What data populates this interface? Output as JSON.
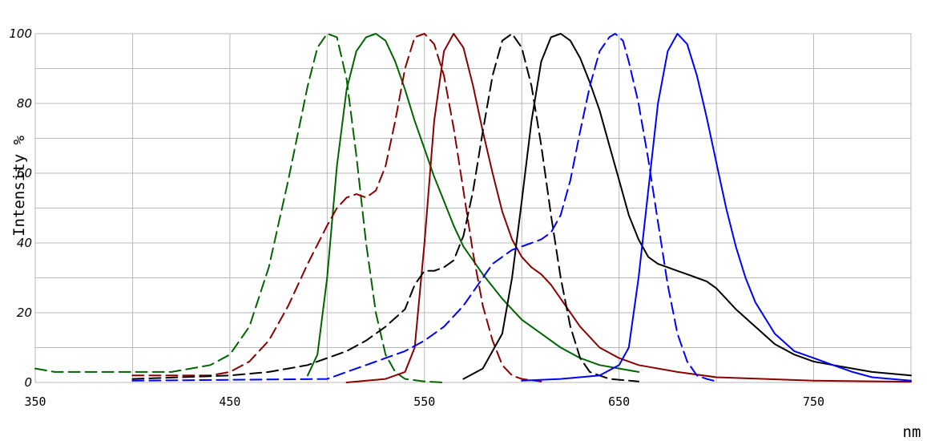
{
  "chart_data": {
    "type": "line",
    "title": "",
    "xlabel": "nm",
    "ylabel": "Intensity %",
    "xlim": [
      350,
      800
    ],
    "ylim": [
      0,
      100
    ],
    "x_ticks": [
      350,
      450,
      550,
      650,
      750
    ],
    "y_ticks": [
      0,
      20,
      40,
      60,
      80,
      100
    ],
    "grid": true,
    "legend": "none",
    "series": [
      {
        "color": "#006400",
        "style": "dashed",
        "points": [
          [
            350,
            4
          ],
          [
            360,
            3
          ],
          [
            380,
            3
          ],
          [
            400,
            3
          ],
          [
            420,
            3
          ],
          [
            440,
            5
          ],
          [
            450,
            8
          ],
          [
            460,
            16
          ],
          [
            470,
            33
          ],
          [
            480,
            58
          ],
          [
            490,
            85
          ],
          [
            495,
            96
          ],
          [
            500,
            100
          ],
          [
            505,
            99
          ],
          [
            510,
            87
          ],
          [
            515,
            65
          ],
          [
            520,
            40
          ],
          [
            525,
            20
          ],
          [
            530,
            8
          ],
          [
            535,
            3
          ],
          [
            540,
            1
          ],
          [
            550,
            0.3
          ],
          [
            560,
            0
          ]
        ]
      },
      {
        "color": "#006400",
        "style": "solid",
        "points": [
          [
            490,
            2
          ],
          [
            495,
            8
          ],
          [
            500,
            30
          ],
          [
            505,
            62
          ],
          [
            510,
            84
          ],
          [
            515,
            95
          ],
          [
            520,
            99
          ],
          [
            525,
            100
          ],
          [
            530,
            98
          ],
          [
            535,
            92
          ],
          [
            540,
            84
          ],
          [
            545,
            75
          ],
          [
            550,
            67
          ],
          [
            555,
            59
          ],
          [
            560,
            52
          ],
          [
            565,
            45
          ],
          [
            570,
            39
          ],
          [
            580,
            31
          ],
          [
            590,
            24
          ],
          [
            600,
            18
          ],
          [
            610,
            14
          ],
          [
            620,
            10
          ],
          [
            630,
            7
          ],
          [
            640,
            5
          ],
          [
            650,
            4
          ],
          [
            660,
            3
          ]
        ]
      },
      {
        "color": "#8b0000",
        "style": "dashed",
        "points": [
          [
            400,
            2
          ],
          [
            440,
            2
          ],
          [
            450,
            3
          ],
          [
            460,
            6
          ],
          [
            470,
            12
          ],
          [
            480,
            22
          ],
          [
            490,
            34
          ],
          [
            500,
            45
          ],
          [
            505,
            50
          ],
          [
            510,
            53
          ],
          [
            515,
            54
          ],
          [
            520,
            53
          ],
          [
            525,
            55
          ],
          [
            530,
            62
          ],
          [
            535,
            75
          ],
          [
            540,
            90
          ],
          [
            545,
            99
          ],
          [
            550,
            100
          ],
          [
            555,
            97
          ],
          [
            560,
            88
          ],
          [
            565,
            73
          ],
          [
            570,
            55
          ],
          [
            575,
            37
          ],
          [
            580,
            22
          ],
          [
            585,
            12
          ],
          [
            590,
            5
          ],
          [
            595,
            2
          ],
          [
            600,
            1
          ],
          [
            610,
            0.3
          ]
        ]
      },
      {
        "color": "#8b0000",
        "style": "solid",
        "points": [
          [
            510,
            0
          ],
          [
            530,
            1
          ],
          [
            540,
            3
          ],
          [
            545,
            10
          ],
          [
            550,
            40
          ],
          [
            555,
            75
          ],
          [
            560,
            95
          ],
          [
            565,
            100
          ],
          [
            570,
            96
          ],
          [
            575,
            85
          ],
          [
            580,
            72
          ],
          [
            585,
            60
          ],
          [
            590,
            49
          ],
          [
            595,
            41
          ],
          [
            600,
            36
          ],
          [
            605,
            33
          ],
          [
            610,
            31
          ],
          [
            615,
            28
          ],
          [
            620,
            24
          ],
          [
            630,
            16
          ],
          [
            640,
            10
          ],
          [
            650,
            7
          ],
          [
            660,
            5
          ],
          [
            680,
            3
          ],
          [
            700,
            1.5
          ],
          [
            750,
            0.5
          ],
          [
            800,
            0.2
          ]
        ]
      },
      {
        "color": "#000000",
        "style": "dashed",
        "points": [
          [
            400,
            1
          ],
          [
            450,
            2
          ],
          [
            470,
            3
          ],
          [
            480,
            4
          ],
          [
            490,
            5
          ],
          [
            500,
            7
          ],
          [
            510,
            9
          ],
          [
            520,
            12
          ],
          [
            530,
            16
          ],
          [
            540,
            21
          ],
          [
            545,
            28
          ],
          [
            550,
            32
          ],
          [
            555,
            32
          ],
          [
            560,
            33
          ],
          [
            565,
            35
          ],
          [
            570,
            42
          ],
          [
            575,
            55
          ],
          [
            580,
            72
          ],
          [
            585,
            88
          ],
          [
            590,
            98
          ],
          [
            595,
            100
          ],
          [
            600,
            96
          ],
          [
            605,
            85
          ],
          [
            610,
            68
          ],
          [
            615,
            48
          ],
          [
            620,
            30
          ],
          [
            625,
            16
          ],
          [
            630,
            7
          ],
          [
            635,
            3
          ],
          [
            645,
            1
          ],
          [
            660,
            0.3
          ]
        ]
      },
      {
        "color": "#000000",
        "style": "solid",
        "points": [
          [
            570,
            1
          ],
          [
            580,
            4
          ],
          [
            590,
            14
          ],
          [
            595,
            30
          ],
          [
            600,
            52
          ],
          [
            605,
            75
          ],
          [
            610,
            92
          ],
          [
            615,
            99
          ],
          [
            620,
            100
          ],
          [
            625,
            98
          ],
          [
            630,
            93
          ],
          [
            635,
            86
          ],
          [
            640,
            78
          ],
          [
            645,
            68
          ],
          [
            650,
            58
          ],
          [
            655,
            48
          ],
          [
            660,
            41
          ],
          [
            665,
            36
          ],
          [
            670,
            34
          ],
          [
            675,
            33
          ],
          [
            680,
            32
          ],
          [
            685,
            31
          ],
          [
            690,
            30
          ],
          [
            695,
            29
          ],
          [
            700,
            27
          ],
          [
            705,
            24
          ],
          [
            710,
            21
          ],
          [
            720,
            16
          ],
          [
            730,
            11
          ],
          [
            740,
            8
          ],
          [
            750,
            6
          ],
          [
            760,
            5
          ],
          [
            770,
            4
          ],
          [
            780,
            3
          ],
          [
            800,
            2
          ]
        ]
      },
      {
        "color": "#0000ff",
        "style": "dashed",
        "points": [
          [
            400,
            0.5
          ],
          [
            500,
            1
          ],
          [
            510,
            3
          ],
          [
            520,
            5
          ],
          [
            530,
            7
          ],
          [
            540,
            9
          ],
          [
            550,
            12
          ],
          [
            560,
            16
          ],
          [
            570,
            22
          ],
          [
            580,
            30
          ],
          [
            585,
            34
          ],
          [
            590,
            36
          ],
          [
            595,
            38
          ],
          [
            600,
            39
          ],
          [
            605,
            40
          ],
          [
            610,
            41
          ],
          [
            615,
            43
          ],
          [
            620,
            48
          ],
          [
            625,
            58
          ],
          [
            630,
            72
          ],
          [
            635,
            85
          ],
          [
            640,
            95
          ],
          [
            645,
            99
          ],
          [
            648,
            100
          ],
          [
            652,
            98
          ],
          [
            655,
            92
          ],
          [
            660,
            80
          ],
          [
            665,
            64
          ],
          [
            670,
            46
          ],
          [
            675,
            28
          ],
          [
            680,
            14
          ],
          [
            685,
            6
          ],
          [
            690,
            2
          ],
          [
            695,
            1
          ],
          [
            700,
            0.3
          ]
        ]
      },
      {
        "color": "#0000ff",
        "style": "solid",
        "points": [
          [
            600,
            0.5
          ],
          [
            620,
            1
          ],
          [
            640,
            2
          ],
          [
            650,
            5
          ],
          [
            655,
            10
          ],
          [
            660,
            30
          ],
          [
            665,
            55
          ],
          [
            670,
            80
          ],
          [
            675,
            95
          ],
          [
            680,
            100
          ],
          [
            685,
            97
          ],
          [
            690,
            88
          ],
          [
            695,
            76
          ],
          [
            700,
            63
          ],
          [
            705,
            50
          ],
          [
            710,
            39
          ],
          [
            715,
            30
          ],
          [
            720,
            23
          ],
          [
            730,
            14
          ],
          [
            740,
            9
          ],
          [
            750,
            7
          ],
          [
            760,
            5
          ],
          [
            770,
            3
          ],
          [
            780,
            1.5
          ],
          [
            790,
            1
          ],
          [
            800,
            0.5
          ]
        ]
      }
    ]
  },
  "axis_unit_label": "nm"
}
